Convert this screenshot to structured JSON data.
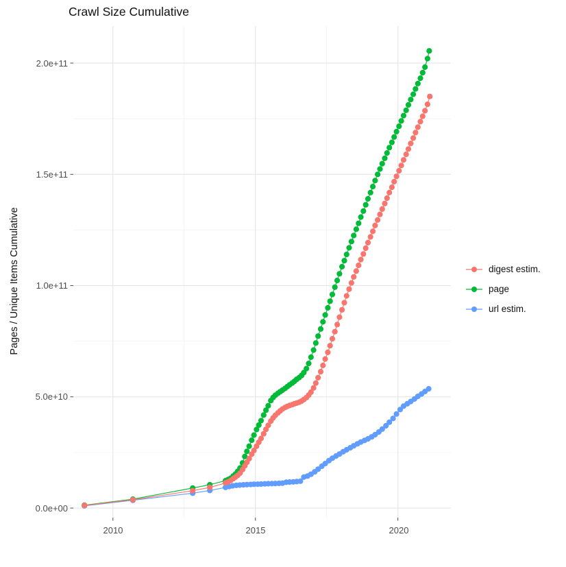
{
  "title": "Crawl Size Cumulative",
  "y_axis": {
    "label": "Pages / Unique Items Cumulative",
    "ticks": [
      "0.0e+00",
      "5.0e+10",
      "1.0e+11",
      "1.5e+11",
      "2.0e+11"
    ],
    "tick_values": [
      0,
      50,
      100,
      150,
      200
    ]
  },
  "x_axis": {
    "ticks": [
      "2010",
      "2015",
      "2020"
    ],
    "tick_values": [
      2010,
      2015,
      2020
    ]
  },
  "legend": {
    "items": [
      {
        "label": "digest estim.",
        "color": "#F8766D"
      },
      {
        "label": "page",
        "color": "#00BA38"
      },
      {
        "label": "url estim.",
        "color": "#619CFF"
      }
    ]
  },
  "chart_data": {
    "type": "scatter",
    "title": "Crawl Size Cumulative",
    "xlabel": "",
    "ylabel": "Pages / Unique Items Cumulative",
    "values_unit": "1e9 (billions of pages / items)",
    "xlim": [
      2008.61,
      2021.86
    ],
    "ylim": [
      -4.3,
      216.65
    ],
    "x_major": [
      2010,
      2015,
      2020
    ],
    "x_minor": [
      2012.5,
      2017.5
    ],
    "y_major": [
      0,
      50,
      100,
      150,
      200
    ],
    "y_minor": [
      25,
      75,
      125,
      175
    ],
    "grid": true,
    "legend_position": "right",
    "series": [
      {
        "name": "page",
        "color": "#00BA38",
        "points": [
          [
            2009.0,
            1.3
          ],
          [
            2010.7,
            4.0
          ],
          [
            2012.8,
            9.0
          ],
          [
            2013.4,
            10.5
          ],
          [
            2013.95,
            12.3
          ],
          [
            2014.04,
            12.8
          ],
          [
            2014.13,
            13.4
          ],
          [
            2014.22,
            14.4
          ],
          [
            2014.3,
            15.3
          ],
          [
            2014.38,
            16.5
          ],
          [
            2014.46,
            18.0
          ],
          [
            2014.55,
            20.3
          ],
          [
            2014.63,
            23.2
          ],
          [
            2014.7,
            25.5
          ],
          [
            2014.78,
            27.8
          ],
          [
            2014.87,
            30.5
          ],
          [
            2014.95,
            32.8
          ],
          [
            2015.04,
            35.3
          ],
          [
            2015.12,
            37.3
          ],
          [
            2015.2,
            39.3
          ],
          [
            2015.29,
            41.8
          ],
          [
            2015.37,
            44.0
          ],
          [
            2015.45,
            46.0
          ],
          [
            2015.54,
            48.3
          ],
          [
            2015.62,
            49.7
          ],
          [
            2015.7,
            50.7
          ],
          [
            2015.79,
            51.6
          ],
          [
            2015.87,
            52.3
          ],
          [
            2015.95,
            53.0
          ],
          [
            2016.04,
            53.8
          ],
          [
            2016.12,
            54.6
          ],
          [
            2016.2,
            55.4
          ],
          [
            2016.29,
            56.2
          ],
          [
            2016.37,
            57.0
          ],
          [
            2016.45,
            57.9
          ],
          [
            2016.54,
            58.7
          ],
          [
            2016.62,
            59.6
          ],
          [
            2016.7,
            60.9
          ],
          [
            2016.79,
            62.7
          ],
          [
            2016.87,
            65.0
          ],
          [
            2016.95,
            67.8
          ],
          [
            2017.04,
            71.0
          ],
          [
            2017.12,
            74.2
          ],
          [
            2017.2,
            77.3
          ],
          [
            2017.29,
            80.5
          ],
          [
            2017.37,
            83.7
          ],
          [
            2017.45,
            86.8
          ],
          [
            2017.54,
            90.0
          ],
          [
            2017.62,
            93.0
          ],
          [
            2017.7,
            96.0
          ],
          [
            2017.79,
            99.3
          ],
          [
            2017.87,
            102.3
          ],
          [
            2017.95,
            105.3
          ],
          [
            2018.04,
            108.5
          ],
          [
            2018.12,
            111.2
          ],
          [
            2018.2,
            114.0
          ],
          [
            2018.29,
            117.0
          ],
          [
            2018.37,
            119.8
          ],
          [
            2018.45,
            122.5
          ],
          [
            2018.54,
            125.3
          ],
          [
            2018.62,
            128.0
          ],
          [
            2018.7,
            130.8
          ],
          [
            2018.79,
            133.5
          ],
          [
            2018.87,
            136.3
          ],
          [
            2018.95,
            139.0
          ],
          [
            2019.04,
            141.8
          ],
          [
            2019.12,
            144.5
          ],
          [
            2019.2,
            147.2
          ],
          [
            2019.29,
            150.0
          ],
          [
            2019.37,
            152.4
          ],
          [
            2019.45,
            154.8
          ],
          [
            2019.54,
            157.2
          ],
          [
            2019.62,
            159.6
          ],
          [
            2019.7,
            162.0
          ],
          [
            2019.79,
            164.4
          ],
          [
            2019.87,
            166.8
          ],
          [
            2019.95,
            169.2
          ],
          [
            2020.04,
            171.6
          ],
          [
            2020.12,
            174.0
          ],
          [
            2020.2,
            176.4
          ],
          [
            2020.29,
            178.8
          ],
          [
            2020.37,
            181.2
          ],
          [
            2020.45,
            183.6
          ],
          [
            2020.54,
            186.0
          ],
          [
            2020.62,
            188.4
          ],
          [
            2020.7,
            190.8
          ],
          [
            2020.79,
            193.2
          ],
          [
            2020.87,
            195.7
          ],
          [
            2020.95,
            198.2
          ],
          [
            2021.04,
            202.0
          ],
          [
            2021.1,
            205.5
          ]
        ]
      },
      {
        "name": "url estim.",
        "color": "#619CFF",
        "points": [
          [
            2009.0,
            1.0
          ],
          [
            2010.7,
            3.5
          ],
          [
            2012.8,
            6.7
          ],
          [
            2013.4,
            7.9
          ],
          [
            2013.95,
            9.3
          ],
          [
            2014.08,
            9.7
          ],
          [
            2014.2,
            10.0
          ],
          [
            2014.33,
            10.2
          ],
          [
            2014.45,
            10.35
          ],
          [
            2014.58,
            10.45
          ],
          [
            2014.7,
            10.55
          ],
          [
            2014.83,
            10.6
          ],
          [
            2014.95,
            10.7
          ],
          [
            2015.08,
            10.75
          ],
          [
            2015.2,
            10.8
          ],
          [
            2015.33,
            10.9
          ],
          [
            2015.45,
            10.95
          ],
          [
            2015.58,
            11.0
          ],
          [
            2015.7,
            11.05
          ],
          [
            2015.83,
            11.1
          ],
          [
            2015.95,
            11.2
          ],
          [
            2016.08,
            11.6
          ],
          [
            2016.2,
            11.7
          ],
          [
            2016.33,
            11.8
          ],
          [
            2016.45,
            11.9
          ],
          [
            2016.58,
            12.1
          ],
          [
            2016.7,
            13.9
          ],
          [
            2016.83,
            14.4
          ],
          [
            2016.95,
            15.2
          ],
          [
            2017.08,
            16.3
          ],
          [
            2017.2,
            17.5
          ],
          [
            2017.33,
            18.8
          ],
          [
            2017.45,
            20.0
          ],
          [
            2017.58,
            21.3
          ],
          [
            2017.7,
            22.4
          ],
          [
            2017.83,
            23.4
          ],
          [
            2017.95,
            24.3
          ],
          [
            2018.08,
            25.3
          ],
          [
            2018.2,
            26.2
          ],
          [
            2018.33,
            27.1
          ],
          [
            2018.45,
            28.0
          ],
          [
            2018.58,
            28.9
          ],
          [
            2018.7,
            29.7
          ],
          [
            2018.83,
            30.4
          ],
          [
            2018.95,
            31.1
          ],
          [
            2019.08,
            32.0
          ],
          [
            2019.2,
            33.0
          ],
          [
            2019.33,
            34.2
          ],
          [
            2019.45,
            35.5
          ],
          [
            2019.58,
            37.0
          ],
          [
            2019.7,
            38.6
          ],
          [
            2019.83,
            40.3
          ],
          [
            2019.95,
            42.3
          ],
          [
            2020.08,
            44.3
          ],
          [
            2020.2,
            45.8
          ],
          [
            2020.33,
            46.9
          ],
          [
            2020.45,
            47.9
          ],
          [
            2020.58,
            49.0
          ],
          [
            2020.7,
            50.2
          ],
          [
            2020.83,
            51.3
          ],
          [
            2020.95,
            52.4
          ],
          [
            2021.08,
            53.6
          ]
        ]
      },
      {
        "name": "digest estim.",
        "color": "#F8766D",
        "points": [
          [
            2009.0,
            1.2
          ],
          [
            2010.7,
            3.7
          ],
          [
            2012.8,
            7.8
          ],
          [
            2013.4,
            9.3
          ],
          [
            2013.95,
            11.3
          ],
          [
            2014.04,
            11.8
          ],
          [
            2014.13,
            12.4
          ],
          [
            2014.22,
            13.2
          ],
          [
            2014.3,
            13.9
          ],
          [
            2014.38,
            14.7
          ],
          [
            2014.46,
            15.7
          ],
          [
            2014.55,
            17.3
          ],
          [
            2014.63,
            19.0
          ],
          [
            2014.7,
            20.6
          ],
          [
            2014.78,
            22.2
          ],
          [
            2014.87,
            24.2
          ],
          [
            2014.95,
            25.9
          ],
          [
            2015.04,
            27.8
          ],
          [
            2015.12,
            29.6
          ],
          [
            2015.2,
            31.3
          ],
          [
            2015.29,
            33.4
          ],
          [
            2015.37,
            35.4
          ],
          [
            2015.45,
            37.2
          ],
          [
            2015.54,
            39.1
          ],
          [
            2015.62,
            40.5
          ],
          [
            2015.7,
            41.7
          ],
          [
            2015.79,
            42.8
          ],
          [
            2015.87,
            43.7
          ],
          [
            2015.95,
            44.5
          ],
          [
            2016.04,
            45.2
          ],
          [
            2016.12,
            45.7
          ],
          [
            2016.2,
            46.1
          ],
          [
            2016.29,
            46.5
          ],
          [
            2016.37,
            46.9
          ],
          [
            2016.45,
            47.2
          ],
          [
            2016.54,
            47.6
          ],
          [
            2016.62,
            48.1
          ],
          [
            2016.7,
            48.8
          ],
          [
            2016.79,
            49.7
          ],
          [
            2016.87,
            50.8
          ],
          [
            2016.95,
            52.1
          ],
          [
            2017.04,
            54.0
          ],
          [
            2017.12,
            56.2
          ],
          [
            2017.2,
            58.6
          ],
          [
            2017.29,
            61.3
          ],
          [
            2017.37,
            64.1
          ],
          [
            2017.45,
            67.0
          ],
          [
            2017.54,
            70.0
          ],
          [
            2017.62,
            73.0
          ],
          [
            2017.7,
            76.1
          ],
          [
            2017.79,
            79.3
          ],
          [
            2017.87,
            82.5
          ],
          [
            2017.95,
            85.8
          ],
          [
            2018.04,
            89.1
          ],
          [
            2018.12,
            92.3
          ],
          [
            2018.2,
            95.4
          ],
          [
            2018.29,
            98.4
          ],
          [
            2018.37,
            101.2
          ],
          [
            2018.45,
            103.9
          ],
          [
            2018.54,
            106.5
          ],
          [
            2018.62,
            109.1
          ],
          [
            2018.7,
            111.7
          ],
          [
            2018.79,
            114.2
          ],
          [
            2018.87,
            116.8
          ],
          [
            2018.95,
            119.3
          ],
          [
            2019.04,
            121.9
          ],
          [
            2019.12,
            124.4
          ],
          [
            2019.2,
            127.0
          ],
          [
            2019.29,
            129.5
          ],
          [
            2019.37,
            132.0
          ],
          [
            2019.45,
            134.4
          ],
          [
            2019.54,
            136.9
          ],
          [
            2019.62,
            139.3
          ],
          [
            2019.7,
            141.8
          ],
          [
            2019.79,
            144.2
          ],
          [
            2019.87,
            146.7
          ],
          [
            2019.95,
            149.1
          ],
          [
            2020.04,
            151.6
          ],
          [
            2020.12,
            154.0
          ],
          [
            2020.2,
            156.5
          ],
          [
            2020.29,
            159.0
          ],
          [
            2020.37,
            161.4
          ],
          [
            2020.45,
            163.9
          ],
          [
            2020.54,
            166.3
          ],
          [
            2020.62,
            168.8
          ],
          [
            2020.7,
            171.2
          ],
          [
            2020.79,
            173.7
          ],
          [
            2020.87,
            176.1
          ],
          [
            2020.95,
            178.6
          ],
          [
            2021.04,
            181.5
          ],
          [
            2021.12,
            185.0
          ]
        ]
      }
    ]
  }
}
